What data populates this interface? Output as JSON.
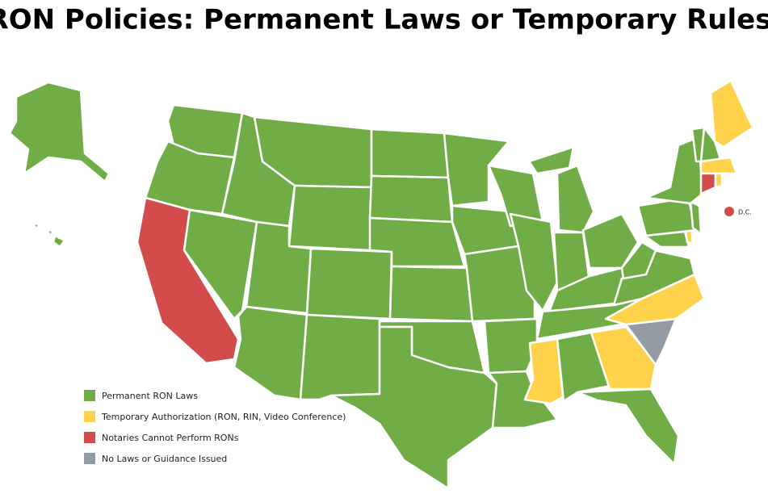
{
  "title": "RON Policies: Permanent Laws or Temporary Rules",
  "legend": {
    "items": [
      {
        "label": "Permanent RON Laws",
        "color": "#70ad47"
      },
      {
        "label": "Temporary Authorization (RON, RIN, Video Conference)",
        "color": "#ffd24c"
      },
      {
        "label": "Notaries Cannot Perform RONs",
        "color": "#d34b4b"
      },
      {
        "label": "No Laws or Guidance Issued",
        "color": "#959ba4"
      }
    ]
  },
  "dc_label": "D.C."
}
